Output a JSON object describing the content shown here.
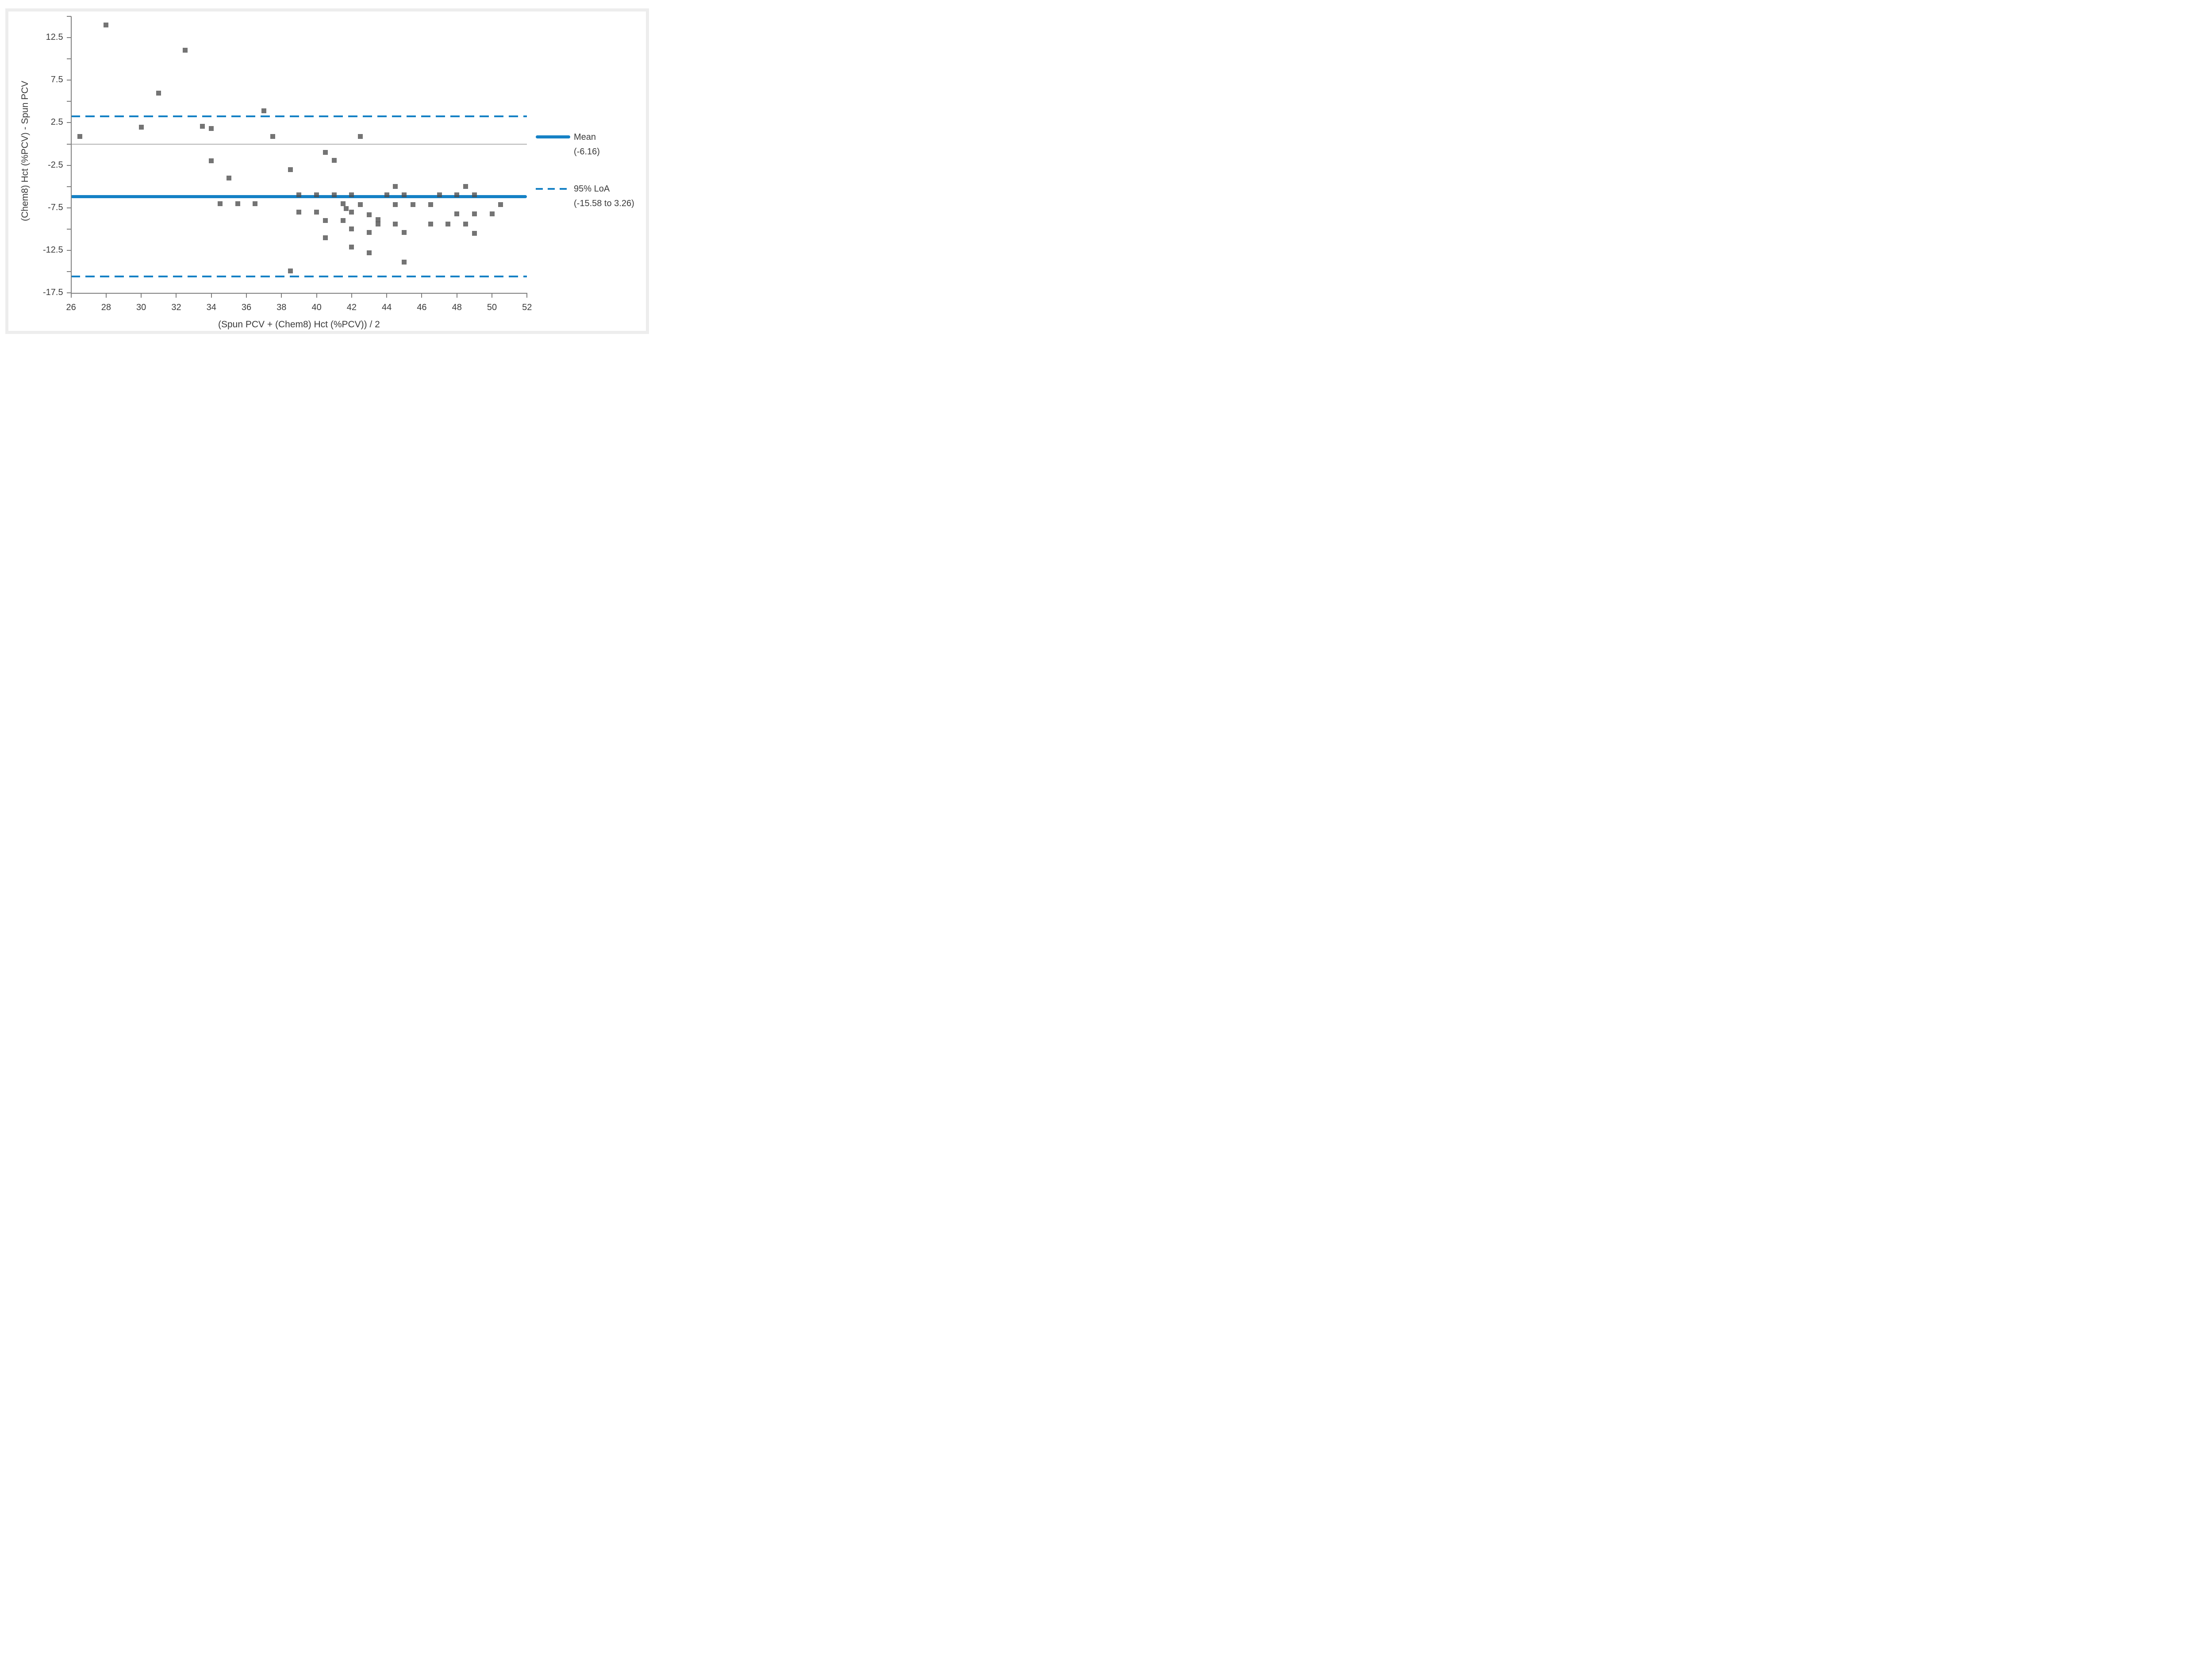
{
  "chart_data": {
    "type": "scatter",
    "title": "",
    "xlabel": "(Spun PCV + (Chem8) Hct (%PCV)) / 2",
    "ylabel": "(Chem8) Hct (%PCV) - Spun PCV",
    "axes": {
      "xmin": 26,
      "xmax": 52,
      "x_tick_step": 2,
      "x_tick_labels": [
        "26",
        "28",
        "30",
        "32",
        "34",
        "36",
        "38",
        "40",
        "42",
        "44",
        "46",
        "48",
        "50",
        "52"
      ],
      "ymin": -17.5,
      "ymax": 15,
      "y_tick_step": 2.5,
      "y_labeled_ticks": [
        12.5,
        7.5,
        2.5,
        -2.5,
        -7.5,
        -12.5,
        -17.5
      ],
      "y_tick_labels": [
        "12.5",
        "7.5",
        "2.5",
        "-2.5",
        "-7.5",
        "-12.5",
        "-17.5"
      ],
      "grid": "off"
    },
    "reference_lines": {
      "zero_line": {
        "y": 0,
        "style": "solid",
        "color": "#b3b3b3"
      },
      "mean": {
        "y": -6.16,
        "style": "solid",
        "color": "#1581c5",
        "label": "Mean",
        "value_label": "(-6.16)"
      },
      "loa_upper": {
        "y": 3.26,
        "style": "dashed",
        "color": "#1581c5"
      },
      "loa_lower": {
        "y": -15.58,
        "style": "dashed",
        "color": "#1581c5"
      },
      "loa_label": "95% LoA",
      "loa_value_label": "(-15.58 to 3.26)"
    },
    "legend": {
      "position": "right",
      "entries": [
        {
          "label": "Mean",
          "value": "(-6.16)",
          "line": "solid"
        },
        {
          "label": "95% LoA",
          "value": "(-15.58 to 3.26)",
          "line": "dashed"
        }
      ]
    },
    "marker": {
      "shape": "square",
      "color": "#6e6e6e"
    },
    "points": [
      [
        26.5,
        0.9
      ],
      [
        28,
        14.0
      ],
      [
        30,
        2.0
      ],
      [
        31,
        6.0
      ],
      [
        32.5,
        11.0
      ],
      [
        33.5,
        2.1
      ],
      [
        34,
        1.8
      ],
      [
        34,
        -2.0
      ],
      [
        34.5,
        -7.0
      ],
      [
        35,
        -4.0
      ],
      [
        35.5,
        -7.0
      ],
      [
        36.5,
        -7.0
      ],
      [
        37,
        3.9
      ],
      [
        37.5,
        0.9
      ],
      [
        38.5,
        -3.0
      ],
      [
        38.5,
        -14.9
      ],
      [
        39,
        -6.0
      ],
      [
        39,
        -8.0
      ],
      [
        40,
        -6.0
      ],
      [
        40,
        -8.0
      ],
      [
        40.5,
        -1.0
      ],
      [
        40.5,
        -9.0
      ],
      [
        40.5,
        -11.0
      ],
      [
        41,
        -1.9
      ],
      [
        41,
        -6.0
      ],
      [
        41.5,
        -7.0
      ],
      [
        41.5,
        -9.0
      ],
      [
        41.7,
        -7.6
      ],
      [
        42,
        -6.0
      ],
      [
        42,
        -8.0
      ],
      [
        42,
        -10.0
      ],
      [
        42,
        -12.1
      ],
      [
        42.5,
        0.9
      ],
      [
        42.5,
        -7.1
      ],
      [
        43,
        -8.3
      ],
      [
        43,
        -10.4
      ],
      [
        43,
        -12.8
      ],
      [
        43.5,
        -8.9
      ],
      [
        43.5,
        -9.4
      ],
      [
        44,
        -6.0
      ],
      [
        44.5,
        -5.0
      ],
      [
        44.5,
        -7.1
      ],
      [
        44.5,
        -9.4
      ],
      [
        45,
        -6.0
      ],
      [
        45,
        -10.4
      ],
      [
        45,
        -13.9
      ],
      [
        45.5,
        -7.1
      ],
      [
        46.5,
        -7.1
      ],
      [
        46.5,
        -9.4
      ],
      [
        47,
        -6.0
      ],
      [
        47.5,
        -9.4
      ],
      [
        48,
        -6.0
      ],
      [
        48,
        -8.2
      ],
      [
        48.5,
        -5.0
      ],
      [
        48.5,
        -9.4
      ],
      [
        49,
        -6.0
      ],
      [
        49,
        -8.2
      ],
      [
        49,
        -10.5
      ],
      [
        50,
        -8.2
      ],
      [
        50.5,
        -7.1
      ]
    ]
  },
  "colors": {
    "accent_blue": "#1581c5",
    "marker_gray": "#6e6e6e",
    "axis_gray": "#7f7f7f",
    "zero_line_gray": "#b3b3b3",
    "text": "#3a3a3a",
    "figure_border": "#ededed"
  }
}
